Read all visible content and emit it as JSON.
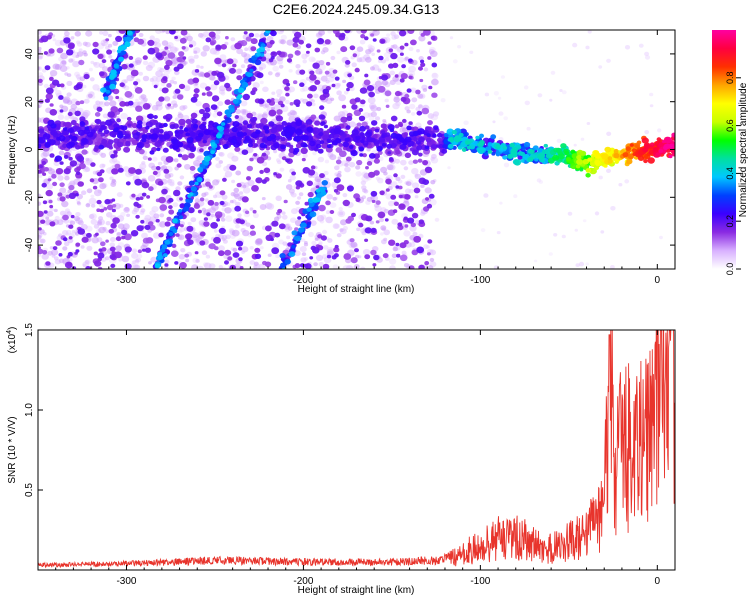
{
  "figure": {
    "title": "C2E6.2024.245.09.34.G13"
  },
  "chart_data": [
    {
      "type": "heatmap",
      "xlabel": "Height of straight line (km)",
      "ylabel": "Frequency (Hz)",
      "xlim": [
        -350,
        10
      ],
      "ylim": [
        -50,
        50
      ],
      "xticks": [
        -300,
        -200,
        -100,
        0
      ],
      "yticks": [
        -40,
        -20,
        0,
        20,
        40
      ],
      "colorbar": {
        "label": "Normalized spectral amplitude",
        "range": [
          0,
          1
        ],
        "ticks": [
          "0.0",
          "0.2",
          "0.4",
          "0.6",
          "0.8"
        ],
        "colors": [
          "#ffffff",
          "#d8b0ff",
          "#8a2be2",
          "#3b00ff",
          "#0040ff",
          "#00c8ff",
          "#00e0a0",
          "#00ff00",
          "#c8ff00",
          "#ffff00",
          "#ffa500",
          "#ff3000",
          "#ff0040",
          "#ff00a0"
        ]
      },
      "features": [
        {
          "name": "carrier",
          "points": [
            [
              -345,
              5
            ],
            [
              -300,
              6
            ],
            [
              -250,
              6
            ],
            [
              -200,
              6
            ],
            [
              -150,
              4
            ],
            [
              -110,
              3
            ],
            [
              -90,
              0
            ],
            [
              -70,
              -2
            ],
            [
              -50,
              -3
            ],
            [
              -40,
              -6
            ],
            [
              -30,
              -4
            ],
            [
              -20,
              -2
            ],
            [
              -10,
              0
            ],
            [
              0,
              0
            ],
            [
              8,
              1
            ]
          ]
        },
        {
          "name": "streak-1",
          "points": [
            [
              -312,
              22
            ],
            [
              -297,
              52
            ]
          ]
        },
        {
          "name": "streak-2",
          "points": [
            [
              -287,
              -55
            ],
            [
              -215,
              56
            ]
          ]
        },
        {
          "name": "streak-3",
          "points": [
            [
              -216,
              -55
            ],
            [
              -188,
              -15
            ]
          ]
        }
      ]
    },
    {
      "type": "line",
      "xlabel": "Height of straight line (km)",
      "ylabel": "SNR (10 * V/V)",
      "y_scale_label": "(x10",
      "y_scale_exp": "4",
      "xlim": [
        -350,
        10
      ],
      "ylim": [
        0,
        1.5
      ],
      "xticks": [
        -300,
        -200,
        -100,
        0
      ],
      "yticks": [
        "0.5",
        "1.0",
        "1.5"
      ],
      "color": "#e8342c",
      "series": [
        {
          "x": [
            -350,
            -300,
            -250,
            -200,
            -150,
            -125,
            -112,
            -105,
            -95,
            -85,
            -75,
            -65,
            -55,
            -45,
            -35,
            -30,
            -27,
            -24,
            -22,
            -18,
            -14,
            -10,
            -6,
            -2,
            2,
            5,
            8,
            10
          ],
          "y": [
            0.03,
            0.04,
            0.06,
            0.05,
            0.05,
            0.06,
            0.09,
            0.14,
            0.18,
            0.25,
            0.2,
            0.14,
            0.16,
            0.22,
            0.3,
            0.4,
            1.47,
            0.6,
            0.8,
            0.8,
            0.9,
            0.85,
            1.0,
            0.95,
            1.2,
            0.95,
            1.52,
            1.0
          ]
        }
      ]
    }
  ]
}
